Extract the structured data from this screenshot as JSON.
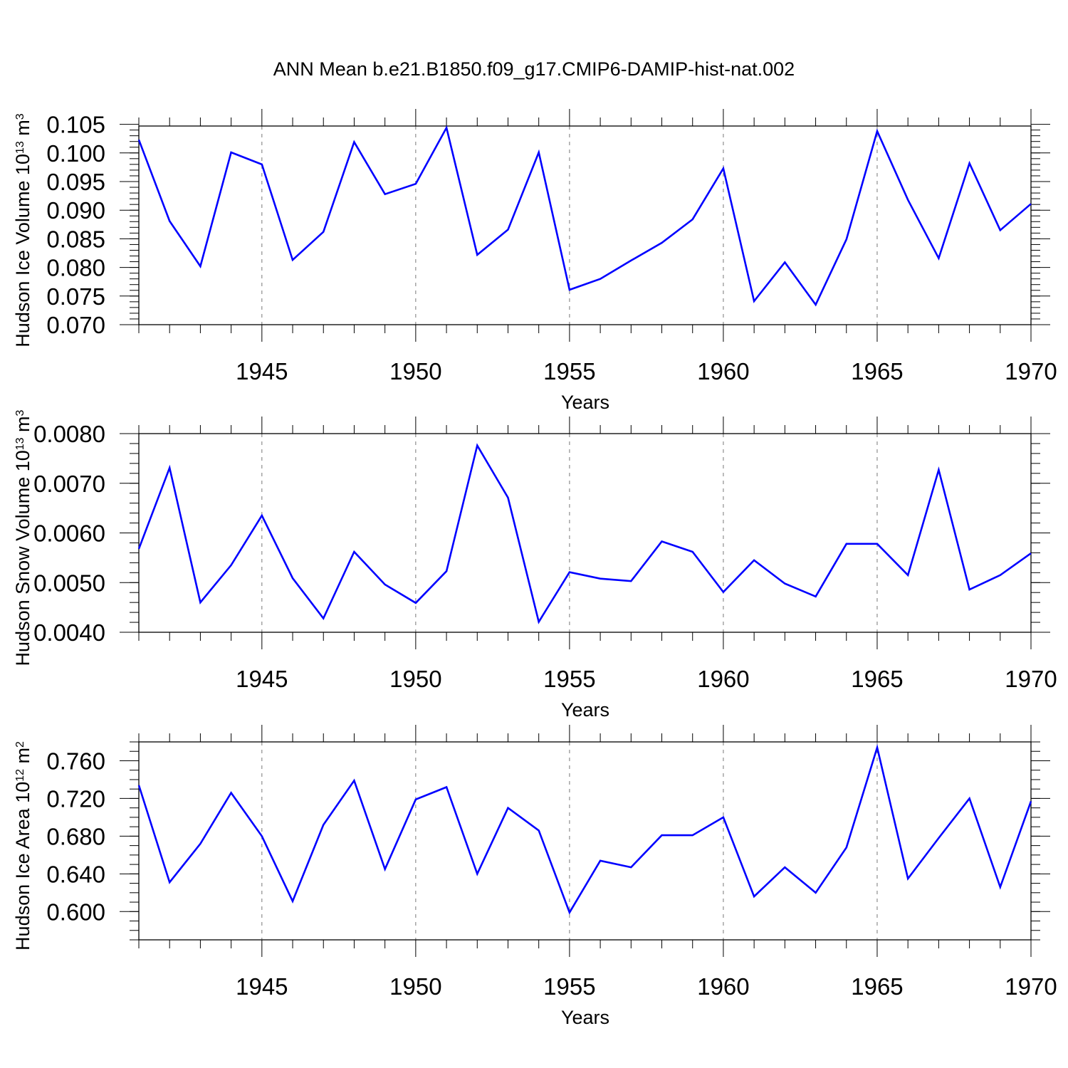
{
  "figure": {
    "title": "ANN Mean b.e21.B1850.f09_g17.CMIP6-DAMIP-hist-nat.002"
  },
  "style": {
    "line_color": "#0000ff",
    "axis_color": "#000000",
    "grid_color": "#777777"
  },
  "chart_data": [
    {
      "type": "line",
      "series": [
        {
          "name": "Hudson Ice Volume",
          "x": [
            1941,
            1942,
            1943,
            1944,
            1945,
            1946,
            1947,
            1948,
            1949,
            1950,
            1951,
            1952,
            1953,
            1954,
            1955,
            1956,
            1957,
            1958,
            1959,
            1960,
            1961,
            1962,
            1963,
            1964,
            1965,
            1966,
            1967,
            1968,
            1969,
            1970
          ],
          "values": [
            0.1023,
            0.0881,
            0.0802,
            0.1001,
            0.098,
            0.0813,
            0.0862,
            0.1019,
            0.0928,
            0.0946,
            0.1044,
            0.0822,
            0.0866,
            0.1001,
            0.0761,
            0.078,
            0.0812,
            0.0843,
            0.0884,
            0.0973,
            0.0741,
            0.0809,
            0.0735,
            0.0849,
            0.1038,
            0.0918,
            0.0816,
            0.0982,
            0.0865,
            0.0911
          ]
        }
      ],
      "ylabel": "Hudson Ice Volume 10",
      "ylabel_exp": "13",
      "ylabel_unit": " m",
      "ylabel_unit_exp": "3",
      "xlabel": "Years",
      "xlim": [
        1941,
        1970
      ],
      "ylim": [
        0.07,
        0.1047
      ],
      "yticks": [
        0.07,
        0.075,
        0.08,
        0.085,
        0.09,
        0.095,
        0.1,
        0.105
      ],
      "ytick_labels": [
        "0.070",
        "0.075",
        "0.080",
        "0.085",
        "0.090",
        "0.095",
        "0.100",
        "0.105"
      ],
      "yminor_step": 0.001,
      "xticks": [
        1945,
        1950,
        1955,
        1960,
        1965,
        1970
      ],
      "xtick_labels": [
        "1945",
        "1950",
        "1955",
        "1960",
        "1965",
        "1970"
      ],
      "grid": "vertical dashed at labeled years"
    },
    {
      "type": "line",
      "series": [
        {
          "name": "Hudson Snow Volume",
          "x": [
            1941,
            1942,
            1943,
            1944,
            1945,
            1946,
            1947,
            1948,
            1949,
            1950,
            1951,
            1952,
            1953,
            1954,
            1955,
            1956,
            1957,
            1958,
            1959,
            1960,
            1961,
            1962,
            1963,
            1964,
            1965,
            1966,
            1967,
            1968,
            1969,
            1970
          ],
          "values": [
            0.00568,
            0.00731,
            0.0046,
            0.00535,
            0.00635,
            0.00509,
            0.00428,
            0.00562,
            0.00496,
            0.00459,
            0.00523,
            0.00776,
            0.00671,
            0.00421,
            0.00521,
            0.00508,
            0.00503,
            0.00583,
            0.00562,
            0.00481,
            0.00545,
            0.00498,
            0.00472,
            0.00578,
            0.00578,
            0.00515,
            0.00727,
            0.00486,
            0.00515,
            0.00559
          ]
        }
      ],
      "ylabel": "Hudson Snow Volume 10",
      "ylabel_exp": "13",
      "ylabel_unit": " m",
      "ylabel_unit_exp": "3",
      "xlabel": "Years",
      "xlim": [
        1941,
        1970
      ],
      "ylim": [
        0.004,
        0.008
      ],
      "yticks": [
        0.004,
        0.005,
        0.006,
        0.007,
        0.008
      ],
      "ytick_labels": [
        "0.0040",
        "0.0050",
        "0.0060",
        "0.0070",
        "0.0080"
      ],
      "yminor_step": 0.0002,
      "xticks": [
        1945,
        1950,
        1955,
        1960,
        1965,
        1970
      ],
      "xtick_labels": [
        "1945",
        "1950",
        "1955",
        "1960",
        "1965",
        "1970"
      ],
      "grid": "vertical dashed at labeled years"
    },
    {
      "type": "line",
      "series": [
        {
          "name": "Hudson Ice Area",
          "x": [
            1941,
            1942,
            1943,
            1944,
            1945,
            1946,
            1947,
            1948,
            1949,
            1950,
            1951,
            1952,
            1953,
            1954,
            1955,
            1956,
            1957,
            1958,
            1959,
            1960,
            1961,
            1962,
            1963,
            1964,
            1965,
            1966,
            1967,
            1968,
            1969,
            1970
          ],
          "values": [
            0.734,
            0.631,
            0.672,
            0.726,
            0.68,
            0.611,
            0.692,
            0.739,
            0.645,
            0.719,
            0.732,
            0.64,
            0.71,
            0.686,
            0.599,
            0.654,
            0.647,
            0.681,
            0.681,
            0.7,
            0.616,
            0.647,
            0.62,
            0.668,
            0.774,
            0.635,
            0.678,
            0.72,
            0.626,
            0.717
          ]
        }
      ],
      "ylabel": "Hudson Ice Area 10",
      "ylabel_exp": "12",
      "ylabel_unit": " m",
      "ylabel_unit_exp": "2",
      "xlabel": "Years",
      "xlim": [
        1941,
        1970
      ],
      "ylim": [
        0.57,
        0.78
      ],
      "yticks": [
        0.6,
        0.64,
        0.68,
        0.72,
        0.76
      ],
      "ytick_labels": [
        "0.600",
        "0.640",
        "0.680",
        "0.720",
        "0.760"
      ],
      "yminor_step": 0.01,
      "xticks": [
        1945,
        1950,
        1955,
        1960,
        1965,
        1970
      ],
      "xtick_labels": [
        "1945",
        "1950",
        "1955",
        "1960",
        "1965",
        "1970"
      ],
      "grid": "vertical dashed at labeled years"
    }
  ]
}
